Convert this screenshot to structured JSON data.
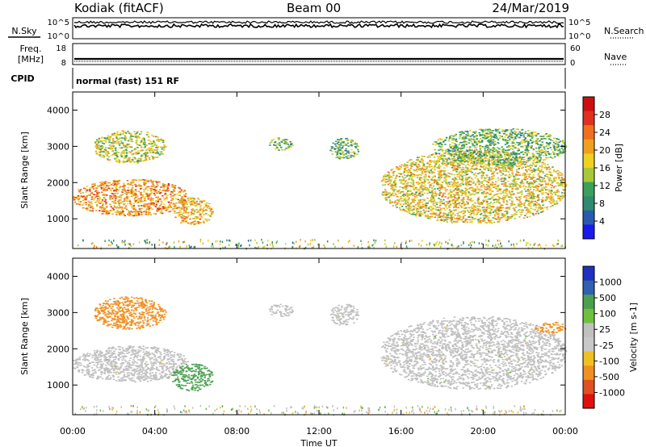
{
  "header": {
    "station": "Kodiak (fitACF)",
    "beam": "Beam 00",
    "date": "24/Mar/2019"
  },
  "noise_panel": {
    "left_label": "N.Sky",
    "right_label": "N.Search",
    "left_ticks": [
      "10^5",
      "10^0"
    ],
    "right_ticks": [
      "10^5",
      "10^0"
    ]
  },
  "freq_panel": {
    "left_label_1": "Freq.",
    "left_label_2": "[MHz]",
    "right_label": "Nave",
    "left_ticks": [
      "18",
      "8"
    ],
    "right_ticks": [
      "60",
      "0"
    ]
  },
  "cpid_panel": {
    "label": "CPID",
    "mode": "normal (fast) 151 RF"
  },
  "colors": {
    "frame": "#000000",
    "ground_scatter": "#c0c0c0"
  },
  "power_scale": {
    "title": "Power [dB]",
    "ticks": [
      "4",
      "8",
      "12",
      "16",
      "20",
      "24",
      "28"
    ],
    "colors": [
      "#1a1aee",
      "#2a5ab0",
      "#2f8a70",
      "#3aa05a",
      "#a8c83a",
      "#f0d020",
      "#f0a020",
      "#f07020",
      "#e03020",
      "#cc1010"
    ]
  },
  "velocity_scale": {
    "title": "Velocity [m s-1]",
    "ticks": [
      "1000",
      "500",
      "100",
      "25",
      "-25",
      "-100",
      "-500",
      "-1000"
    ],
    "colors": [
      "#2030c0",
      "#3060b0",
      "#4aa050",
      "#70c040",
      "#c0c0c0",
      "#c8c8c8",
      "#f0c020",
      "#f09020",
      "#e05020",
      "#e01010"
    ]
  },
  "chart_data": [
    {
      "type": "heatmap",
      "name": "Power",
      "ylabel": "Slant Range [km]",
      "xlabel": "",
      "xlim": [
        "00:00",
        "24:00"
      ],
      "ylim": [
        180,
        4500
      ],
      "y_ticks": [
        1000,
        2000,
        3000,
        4000
      ],
      "x_ticks": [
        "00:00",
        "04:00",
        "08:00",
        "12:00",
        "16:00",
        "20:00",
        "00:00"
      ],
      "echo_regions": [
        {
          "t_start": 0.0,
          "t_end": 5.6,
          "range_start": 1100,
          "range_end": 2100,
          "power_db": 22
        },
        {
          "t_start": 1.0,
          "t_end": 4.5,
          "range_start": 2550,
          "range_end": 3450,
          "power_db": 16
        },
        {
          "t_start": 4.8,
          "t_end": 6.8,
          "range_start": 850,
          "range_end": 1600,
          "power_db": 20
        },
        {
          "t_start": 9.5,
          "t_end": 10.7,
          "range_start": 2900,
          "range_end": 3250,
          "power_db": 12
        },
        {
          "t_start": 12.5,
          "t_end": 13.9,
          "range_start": 2650,
          "range_end": 3250,
          "power_db": 12
        },
        {
          "t_start": 15.0,
          "t_end": 24.0,
          "range_start": 900,
          "range_end": 2900,
          "power_db": 18
        },
        {
          "t_start": 17.5,
          "t_end": 24.0,
          "range_start": 2500,
          "range_end": 3500,
          "power_db": 12
        }
      ]
    },
    {
      "type": "heatmap",
      "name": "Velocity",
      "ylabel": "Slant Range [km]",
      "xlabel": "Time UT",
      "xlim": [
        "00:00",
        "24:00"
      ],
      "ylim": [
        180,
        4500
      ],
      "y_ticks": [
        1000,
        2000,
        3000,
        4000
      ],
      "x_ticks": [
        "00:00",
        "04:00",
        "08:00",
        "12:00",
        "16:00",
        "20:00",
        "00:00"
      ],
      "echo_regions": [
        {
          "t_start": 0.0,
          "t_end": 5.6,
          "range_start": 1100,
          "range_end": 2100,
          "velocity": 0,
          "ground_scatter": true
        },
        {
          "t_start": 1.0,
          "t_end": 4.5,
          "range_start": 2550,
          "range_end": 3450,
          "velocity": -300
        },
        {
          "t_start": 4.8,
          "t_end": 6.8,
          "range_start": 850,
          "range_end": 1600,
          "velocity": 150
        },
        {
          "t_start": 9.5,
          "t_end": 10.7,
          "range_start": 2900,
          "range_end": 3250,
          "velocity": 0,
          "ground_scatter": true
        },
        {
          "t_start": 12.5,
          "t_end": 13.9,
          "range_start": 2650,
          "range_end": 3250,
          "velocity": 0,
          "ground_scatter": true
        },
        {
          "t_start": 15.0,
          "t_end": 24.0,
          "range_start": 900,
          "range_end": 2900,
          "velocity": 0,
          "ground_scatter": true
        },
        {
          "t_start": 22.5,
          "t_end": 24.0,
          "range_start": 2450,
          "range_end": 2750,
          "velocity": -400
        }
      ]
    }
  ]
}
